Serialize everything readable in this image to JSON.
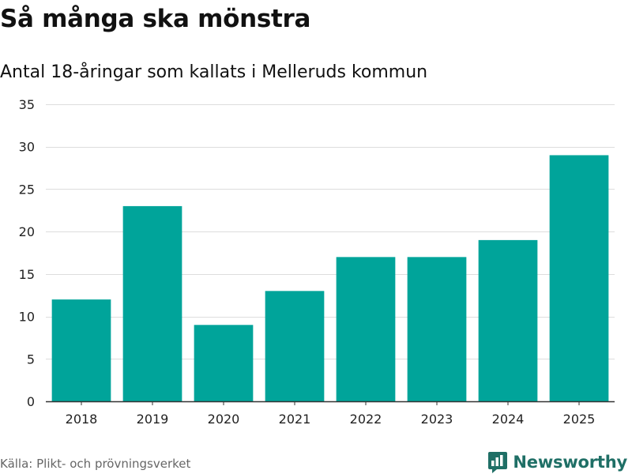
{
  "header": {
    "title": "Så många ska mönstra",
    "subtitle": "Antal 18-åringar som kallats i Melleruds kommun"
  },
  "footer": {
    "source": "Källa: Plikt- och prövningsverket",
    "brand": "Newsworthy",
    "brand_icon": "newsworthy-logo-icon"
  },
  "colors": {
    "bar": "#00a49a",
    "grid": "#dddddd",
    "axis": "#333333",
    "brand": "#1f6f66"
  },
  "chart_data": {
    "type": "bar",
    "title": "Så många ska mönstra",
    "subtitle": "Antal 18-åringar som kallats i Melleruds kommun",
    "xlabel": "",
    "ylabel": "",
    "categories": [
      "2018",
      "2019",
      "2020",
      "2021",
      "2022",
      "2023",
      "2024",
      "2025"
    ],
    "values": [
      12,
      23,
      9,
      13,
      17,
      17,
      19,
      29
    ],
    "ylim": [
      0,
      35
    ],
    "yticks": [
      0,
      5,
      10,
      15,
      20,
      25,
      30,
      35
    ],
    "grid": true,
    "legend": "none"
  }
}
